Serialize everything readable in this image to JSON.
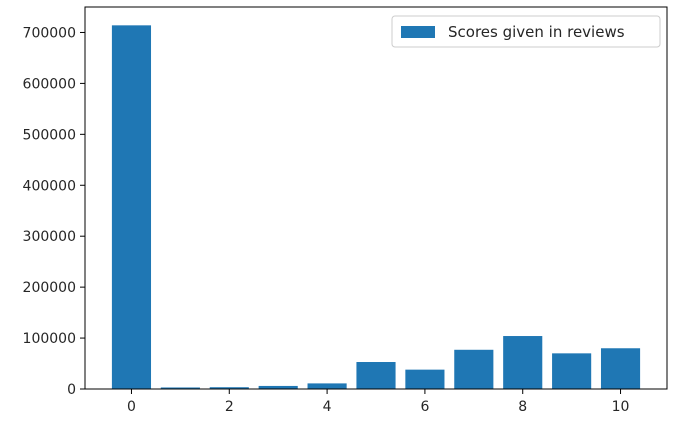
{
  "chart_data": {
    "type": "bar",
    "x": [
      0,
      1,
      2,
      3,
      4,
      5,
      6,
      7,
      8,
      9,
      10
    ],
    "values": [
      714000,
      3000,
      3500,
      6000,
      11000,
      53000,
      38000,
      77000,
      104000,
      70000,
      80000
    ],
    "bar_color": "#1f77b4",
    "legend": {
      "label": "Scores given in reviews",
      "placement": "top-right"
    },
    "xlim": [
      -0.95,
      10.95
    ],
    "ylim": [
      0,
      750000
    ],
    "xticks": [
      0,
      2,
      4,
      6,
      8,
      10
    ],
    "yticks": [
      0,
      100000,
      200000,
      300000,
      400000,
      500000,
      600000,
      700000
    ],
    "grid": false,
    "title": "",
    "xlabel": "",
    "ylabel": ""
  }
}
